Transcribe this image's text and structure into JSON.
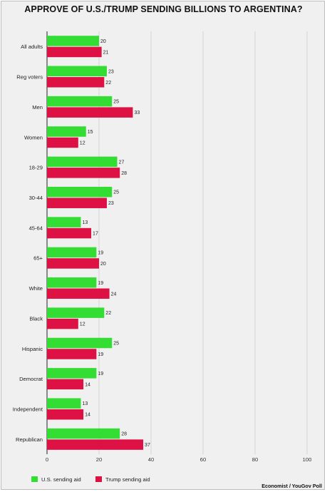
{
  "chart_data": {
    "type": "bar",
    "orientation": "horizontal",
    "title": "APPROVE OF U.S./TRUMP SENDING BILLIONS TO ARGENTINA?",
    "categories": [
      "All adults",
      "Reg voters",
      "Men",
      "Women",
      "18-29",
      "30-44",
      "45-64",
      "65+",
      "White",
      "Black",
      "Hispanic",
      "Democrat",
      "Independent",
      "Republican"
    ],
    "series": [
      {
        "name": "U.S. sending aid",
        "color": "#33dd33",
        "values": [
          20,
          23,
          25,
          15,
          27,
          25,
          13,
          19,
          19,
          22,
          25,
          19,
          13,
          28
        ]
      },
      {
        "name": "Trump sending aid",
        "color": "#dd1144",
        "values": [
          21,
          22,
          33,
          12,
          28,
          23,
          17,
          20,
          24,
          12,
          19,
          14,
          14,
          37
        ]
      }
    ],
    "xlim": [
      0,
      100
    ],
    "xticks": [
      "0",
      "20",
      "40",
      "60",
      "80",
      "100"
    ],
    "grid": true,
    "legend": "bottom-left",
    "source": "Economist / YouGov Poll"
  }
}
